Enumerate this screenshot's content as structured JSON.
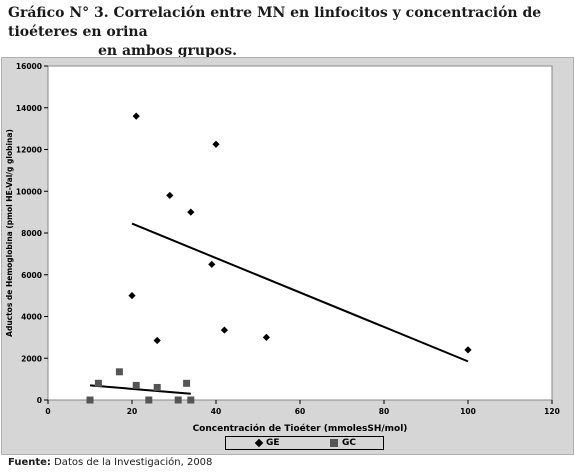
{
  "title": {
    "line1": "Gráfico N° 3.  Correlación entre MN en linfocitos y concentración de tioéteres en orina",
    "line2": "en ambos grupos."
  },
  "source": {
    "label": "Fuente:",
    "text": "Datos de la Investigación, 2008"
  },
  "colors": {
    "panel_bg": "#d6d6d6",
    "plot_bg": "#ffffff",
    "GE": "#000000",
    "GC": "#555555"
  },
  "chart_data": {
    "type": "scatter",
    "xlabel": "Concentración de Tioéter (mmolesSH/mol)",
    "ylabel": "Aductos de Hemoglobina (pmol HE-Val/g globina)",
    "xlim": [
      0,
      120
    ],
    "ylim": [
      0,
      16000
    ],
    "xticks": [
      0,
      20,
      40,
      60,
      80,
      100,
      120
    ],
    "yticks": [
      0,
      2000,
      4000,
      6000,
      8000,
      10000,
      12000,
      14000,
      16000
    ],
    "grid": false,
    "legend_position": "bottom",
    "series": [
      {
        "name": "GE",
        "marker": "diamond",
        "points": [
          [
            20,
            5000
          ],
          [
            21,
            13600
          ],
          [
            26,
            2850
          ],
          [
            29,
            9800
          ],
          [
            34,
            9000
          ],
          [
            39,
            6500
          ],
          [
            40,
            12250
          ],
          [
            42,
            3350
          ],
          [
            52,
            3000
          ],
          [
            100,
            2400
          ]
        ],
        "trendline": [
          [
            20,
            8450
          ],
          [
            100,
            1850
          ]
        ]
      },
      {
        "name": "GC",
        "marker": "square",
        "points": [
          [
            10,
            0
          ],
          [
            12,
            800
          ],
          [
            17,
            1350
          ],
          [
            21,
            700
          ],
          [
            24,
            0
          ],
          [
            26,
            600
          ],
          [
            31,
            0
          ],
          [
            33,
            800
          ],
          [
            34,
            0
          ]
        ],
        "trendline": [
          [
            10,
            700
          ],
          [
            34,
            300
          ]
        ]
      }
    ]
  }
}
